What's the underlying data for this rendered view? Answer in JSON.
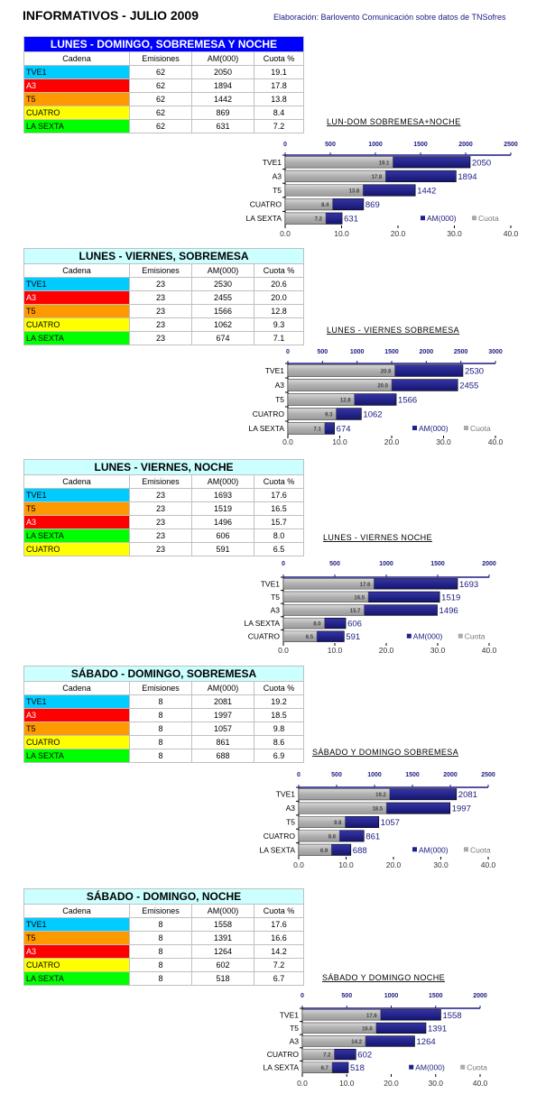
{
  "page": {
    "title": "INFORMATIVOS - JULIO 2009",
    "credit": "Elaboración: Barlovento Comunicación sobre datos de TNSofres"
  },
  "colors": {
    "TVE1": "#00ccff",
    "A3": "#ff0000",
    "T5": "#ff9900",
    "CUATRO": "#ffff00",
    "LA SEXTA": "#00ff00",
    "am_bar": "#1f1f8f",
    "cuota_bar": "#b4b4b4",
    "header_first": "#0000ff",
    "header_other": "#ccffff"
  },
  "tables": [
    {
      "header": "LUNES - DOMINGO, SOBREMESA Y NOCHE",
      "columns": [
        "Cadena",
        "Emisiones",
        "AM(000)",
        "Cuota %"
      ],
      "rows": [
        [
          "TVE1",
          "62",
          "2050",
          "19.1"
        ],
        [
          "A3",
          "62",
          "1894",
          "17.8"
        ],
        [
          "T5",
          "62",
          "1442",
          "13.8"
        ],
        [
          "CUATRO",
          "62",
          "869",
          "8.4"
        ],
        [
          "LA SEXTA",
          "62",
          "631",
          "7.2"
        ]
      ]
    },
    {
      "header": "LUNES - VIERNES, SOBREMESA",
      "columns": [
        "Cadena",
        "Emisiones",
        "AM(000)",
        "Cuota %"
      ],
      "rows": [
        [
          "TVE1",
          "23",
          "2530",
          "20.6"
        ],
        [
          "A3",
          "23",
          "2455",
          "20.0"
        ],
        [
          "T5",
          "23",
          "1566",
          "12.8"
        ],
        [
          "CUATRO",
          "23",
          "1062",
          "9.3"
        ],
        [
          "LA SEXTA",
          "23",
          "674",
          "7.1"
        ]
      ]
    },
    {
      "header": "LUNES - VIERNES, NOCHE",
      "columns": [
        "Cadena",
        "Emisiones",
        "AM(000)",
        "Cuota %"
      ],
      "rows": [
        [
          "TVE1",
          "23",
          "1693",
          "17.6"
        ],
        [
          "T5",
          "23",
          "1519",
          "16.5"
        ],
        [
          "A3",
          "23",
          "1496",
          "15.7"
        ],
        [
          "LA SEXTA",
          "23",
          "606",
          "8.0"
        ],
        [
          "CUATRO",
          "23",
          "591",
          "6.5"
        ]
      ]
    },
    {
      "header": "SÁBADO - DOMINGO, SOBREMESA",
      "columns": [
        "Cadena",
        "Emisiones",
        "AM(000)",
        "Cuota %"
      ],
      "rows": [
        [
          "TVE1",
          "8",
          "2081",
          "19.2"
        ],
        [
          "A3",
          "8",
          "1997",
          "18.5"
        ],
        [
          "T5",
          "8",
          "1057",
          "9.8"
        ],
        [
          "CUATRO",
          "8",
          "861",
          "8.6"
        ],
        [
          "LA SEXTA",
          "8",
          "688",
          "6.9"
        ]
      ]
    },
    {
      "header": "SÁBADO - DOMINGO, NOCHE",
      "columns": [
        "Cadena",
        "Emisiones",
        "AM(000)",
        "Cuota %"
      ],
      "rows": [
        [
          "TVE1",
          "8",
          "1558",
          "17.6"
        ],
        [
          "T5",
          "8",
          "1391",
          "16.6"
        ],
        [
          "A3",
          "8",
          "1264",
          "14.2"
        ],
        [
          "CUATRO",
          "8",
          "602",
          "7.2"
        ],
        [
          "LA SEXTA",
          "8",
          "518",
          "6.7"
        ]
      ]
    }
  ],
  "chart_data": [
    {
      "type": "bar",
      "orientation": "horizontal",
      "title": "LUN-DOM SOBREMESA+NOCHE",
      "categories": [
        "TVE1",
        "A3",
        "T5",
        "CUATRO",
        "LA SEXTA"
      ],
      "series": [
        {
          "name": "AM(000)",
          "values": [
            2050,
            1894,
            1442,
            869,
            631
          ],
          "axis": "top"
        },
        {
          "name": "Cuota",
          "values": [
            19.1,
            17.8,
            13.8,
            8.4,
            7.2
          ],
          "axis": "bottom"
        }
      ],
      "top_axis": {
        "range": [
          0,
          2500
        ],
        "ticks": [
          "0",
          "500",
          "1000",
          "1500",
          "2000",
          "2500"
        ]
      },
      "bottom_axis": {
        "range": [
          0,
          40
        ],
        "ticks": [
          "0.0",
          "10.0",
          "20.0",
          "30.0",
          "40.0"
        ]
      },
      "legend": [
        "AM(000)",
        "Cuota"
      ],
      "legend_position": "bottom-right"
    },
    {
      "type": "bar",
      "orientation": "horizontal",
      "title": "LUNES - VIERNES SOBREMESA",
      "categories": [
        "TVE1",
        "A3",
        "T5",
        "CUATRO",
        "LA SEXTA"
      ],
      "series": [
        {
          "name": "AM(000)",
          "values": [
            2530,
            2455,
            1566,
            1062,
            674
          ],
          "axis": "top"
        },
        {
          "name": "Cuota",
          "values": [
            20.6,
            20.0,
            12.8,
            9.3,
            7.1
          ],
          "axis": "bottom"
        }
      ],
      "top_axis": {
        "range": [
          0,
          3000
        ],
        "ticks": [
          "0",
          "500",
          "1000",
          "1500",
          "2000",
          "2500",
          "3000"
        ]
      },
      "bottom_axis": {
        "range": [
          0,
          40
        ],
        "ticks": [
          "0.0",
          "10.0",
          "20.0",
          "30.0",
          "40.0"
        ]
      },
      "legend": [
        "AM(000)",
        "Cuota"
      ],
      "legend_position": "bottom-right"
    },
    {
      "type": "bar",
      "orientation": "horizontal",
      "title": "LUNES - VIERNES  NOCHE",
      "categories": [
        "TVE1",
        "T5",
        "A3",
        "LA SEXTA",
        "CUATRO"
      ],
      "series": [
        {
          "name": "AM(000)",
          "values": [
            1693,
            1519,
            1496,
            606,
            591
          ],
          "axis": "top"
        },
        {
          "name": "Cuota",
          "values": [
            17.6,
            16.5,
            15.7,
            8.0,
            6.5
          ],
          "axis": "bottom"
        }
      ],
      "top_axis": {
        "range": [
          0,
          2000
        ],
        "ticks": [
          "0",
          "500",
          "1000",
          "1500",
          "2000"
        ]
      },
      "bottom_axis": {
        "range": [
          0,
          40
        ],
        "ticks": [
          "0.0",
          "10.0",
          "20.0",
          "30.0",
          "40.0"
        ]
      },
      "legend": [
        "AM(000)",
        "Cuota"
      ],
      "legend_position": "bottom-right"
    },
    {
      "type": "bar",
      "orientation": "horizontal",
      "title": "SÁBADO Y DOMINGO SOBREMESA",
      "categories": [
        "TVE1",
        "A3",
        "T5",
        "CUATRO",
        "LA SEXTA"
      ],
      "series": [
        {
          "name": "AM(000)",
          "values": [
            2081,
            1997,
            1057,
            861,
            688
          ],
          "axis": "top"
        },
        {
          "name": "Cuota",
          "values": [
            19.2,
            18.5,
            9.8,
            8.6,
            6.9
          ],
          "axis": "bottom"
        }
      ],
      "top_axis": {
        "range": [
          0,
          2500
        ],
        "ticks": [
          "0",
          "500",
          "1000",
          "1500",
          "2000",
          "2500"
        ]
      },
      "bottom_axis": {
        "range": [
          0,
          40
        ],
        "ticks": [
          "0.0",
          "10.0",
          "20.0",
          "30.0",
          "40.0"
        ]
      },
      "legend": [
        "AM(000)",
        "Cuota"
      ],
      "legend_position": "bottom-right"
    },
    {
      "type": "bar",
      "orientation": "horizontal",
      "title": "SÁBADO Y DOMINGO  NOCHE",
      "categories": [
        "TVE1",
        "T5",
        "A3",
        "CUATRO",
        "LA SEXTA"
      ],
      "series": [
        {
          "name": "AM(000)",
          "values": [
            1558,
            1391,
            1264,
            602,
            518
          ],
          "axis": "top"
        },
        {
          "name": "Cuota",
          "values": [
            17.6,
            16.6,
            14.2,
            7.2,
            6.7
          ],
          "axis": "bottom"
        }
      ],
      "top_axis": {
        "range": [
          0,
          2000
        ],
        "ticks": [
          "0",
          "500",
          "1000",
          "1500",
          "2000"
        ]
      },
      "bottom_axis": {
        "range": [
          0,
          40
        ],
        "ticks": [
          "0.0",
          "10.0",
          "20.0",
          "30.0",
          "40.0"
        ]
      },
      "legend": [
        "AM(000)",
        "Cuota"
      ],
      "legend_position": "bottom-right"
    }
  ]
}
